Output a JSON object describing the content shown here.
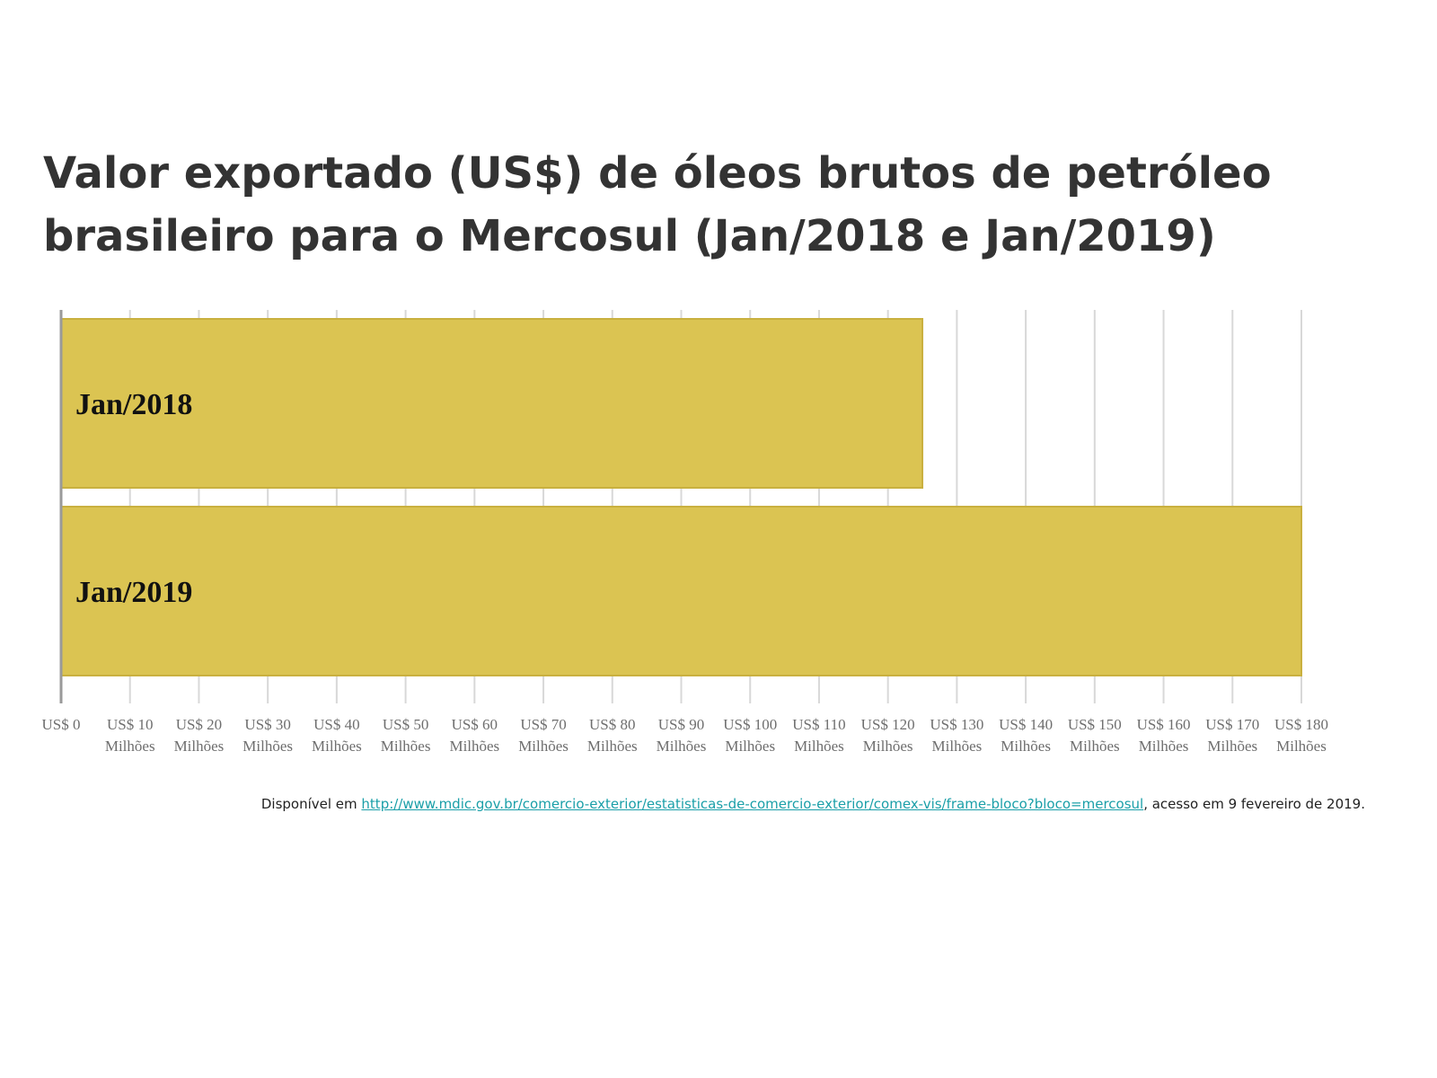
{
  "chart_data": {
    "type": "bar",
    "orientation": "horizontal",
    "title": "Valor exportado (US$) de óleos brutos de petróleo brasileiro para o Mercosul (Jan/2018 e Jan/2019)",
    "categories": [
      "Jan/2018",
      "Jan/2019"
    ],
    "values": [
      125,
      180
    ],
    "xlim": [
      0,
      180
    ],
    "x_ticks": [
      0,
      10,
      20,
      30,
      40,
      50,
      60,
      70,
      80,
      90,
      100,
      110,
      120,
      130,
      140,
      150,
      160,
      170,
      180
    ],
    "tick_labels": [
      [
        "US$ 0"
      ],
      [
        "US$ 10",
        "Milhões"
      ],
      [
        "US$ 20",
        "Milhões"
      ],
      [
        "US$ 30",
        "Milhões"
      ],
      [
        "US$ 40",
        "Milhões"
      ],
      [
        "US$ 50",
        "Milhões"
      ],
      [
        "US$ 60",
        "Milhões"
      ],
      [
        "US$ 70",
        "Milhões"
      ],
      [
        "US$ 80",
        "Milhões"
      ],
      [
        "US$ 90",
        "Milhões"
      ],
      [
        "US$ 100",
        "Milhões"
      ],
      [
        "US$ 110",
        "Milhões"
      ],
      [
        "US$ 120",
        "Milhões"
      ],
      [
        "US$ 130",
        "Milhões"
      ],
      [
        "US$ 140",
        "Milhões"
      ],
      [
        "US$ 150",
        "Milhões"
      ],
      [
        "US$ 160",
        "Milhões"
      ],
      [
        "US$ 170",
        "Milhões"
      ],
      [
        "US$ 180",
        "Milhões"
      ]
    ],
    "grid": "vertical",
    "bar_color": "#dbc452"
  },
  "source": {
    "prefix": "Disponível em ",
    "link_text": "http://www.mdic.gov.br/comercio-exterior/estatisticas-de-comercio-exterior/comex-vis/frame-bloco?bloco=mercosul",
    "suffix": ", acesso em 9 fevereiro de 2019."
  }
}
